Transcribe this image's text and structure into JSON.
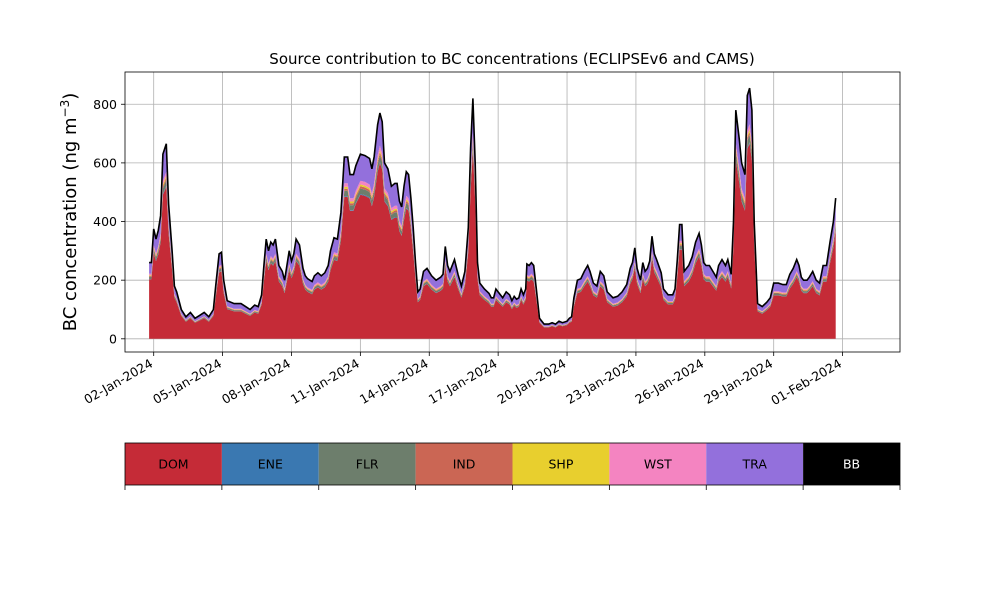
{
  "chart_data": {
    "type": "area",
    "title": "Source contribution to BC concentrations (ECLIPSEv6 and CAMS)",
    "ylabel_main": "BC concentration (ng m",
    "ylabel_sup": "−3",
    "ylabel_close": ")",
    "xlabel": "",
    "x_start": "2024-01-01",
    "xlim_days": [
      -0.25,
      33.5
    ],
    "ylim": [
      -45,
      910
    ],
    "yticks": [
      0,
      200,
      400,
      600,
      800
    ],
    "ytick_labels": [
      "0",
      "200",
      "400",
      "600",
      "800"
    ],
    "xtick_days": [
      1,
      4,
      7,
      10,
      13,
      16,
      19,
      22,
      25,
      28,
      31
    ],
    "xtick_labels": [
      "02-Jan-2024",
      "05-Jan-2024",
      "08-Jan-2024",
      "11-Jan-2024",
      "14-Jan-2024",
      "17-Jan-2024",
      "20-Jan-2024",
      "23-Jan-2024",
      "26-Jan-2024",
      "29-Jan-2024",
      "01-Feb-2024"
    ],
    "grid": true,
    "time_days": [
      -1.5,
      -1.0,
      -0.5,
      0,
      0.5,
      1.0,
      1.5,
      2.0,
      2.5,
      3.0,
      3.5,
      4.0,
      4.5,
      5.0,
      5.5,
      6.0,
      6.5,
      7.0,
      7.5,
      8.0,
      8.5,
      9.0,
      9.5,
      10.0,
      10.5,
      11.0,
      11.5,
      12.0,
      12.5,
      13.0,
      13.5,
      14.0,
      14.5,
      15.0,
      15.5,
      16.0,
      16.5,
      17.0,
      17.5,
      18.0,
      18.5,
      19.0,
      19.5,
      20.0,
      20.5,
      21.0,
      21.5,
      22.0,
      22.5,
      23.0,
      23.5,
      24.0,
      24.5,
      25.0,
      25.5,
      26.0,
      26.5,
      27.0,
      27.5,
      28.0,
      28.5,
      29.0,
      29.5,
      30.0,
      30.5,
      31.0
    ],
    "total_profile": [
      [
        0.8,
        260
      ],
      [
        0.9,
        260
      ],
      [
        1.0,
        375
      ],
      [
        1.1,
        340
      ],
      [
        1.2,
        370
      ],
      [
        1.3,
        420
      ],
      [
        1.4,
        630
      ],
      [
        1.55,
        665
      ],
      [
        1.65,
        460
      ],
      [
        1.8,
        300
      ],
      [
        1.9,
        180
      ],
      [
        2.0,
        160
      ],
      [
        2.2,
        100
      ],
      [
        2.4,
        75
      ],
      [
        2.6,
        90
      ],
      [
        2.8,
        70
      ],
      [
        3.0,
        80
      ],
      [
        3.2,
        90
      ],
      [
        3.4,
        75
      ],
      [
        3.6,
        100
      ],
      [
        3.7,
        180
      ],
      [
        3.85,
        290
      ],
      [
        3.95,
        295
      ],
      [
        4.05,
        200
      ],
      [
        4.2,
        130
      ],
      [
        4.5,
        120
      ],
      [
        4.8,
        120
      ],
      [
        5.0,
        110
      ],
      [
        5.2,
        100
      ],
      [
        5.4,
        115
      ],
      [
        5.55,
        110
      ],
      [
        5.7,
        150
      ],
      [
        5.8,
        250
      ],
      [
        5.9,
        340
      ],
      [
        6.0,
        300
      ],
      [
        6.1,
        330
      ],
      [
        6.2,
        320
      ],
      [
        6.3,
        340
      ],
      [
        6.45,
        250
      ],
      [
        6.6,
        230
      ],
      [
        6.7,
        200
      ],
      [
        6.8,
        250
      ],
      [
        6.9,
        300
      ],
      [
        7.0,
        265
      ],
      [
        7.1,
        290
      ],
      [
        7.2,
        340
      ],
      [
        7.35,
        320
      ],
      [
        7.5,
        240
      ],
      [
        7.6,
        215
      ],
      [
        7.7,
        205
      ],
      [
        7.8,
        200
      ],
      [
        7.9,
        195
      ],
      [
        8.0,
        215
      ],
      [
        8.15,
        225
      ],
      [
        8.3,
        215
      ],
      [
        8.45,
        225
      ],
      [
        8.6,
        250
      ],
      [
        8.7,
        300
      ],
      [
        8.85,
        345
      ],
      [
        9.0,
        340
      ],
      [
        9.15,
        430
      ],
      [
        9.3,
        620
      ],
      [
        9.45,
        620
      ],
      [
        9.55,
        560
      ],
      [
        9.7,
        560
      ],
      [
        9.8,
        590
      ],
      [
        10.0,
        630
      ],
      [
        10.2,
        625
      ],
      [
        10.4,
        615
      ],
      [
        10.5,
        580
      ],
      [
        10.6,
        620
      ],
      [
        10.75,
        730
      ],
      [
        10.85,
        770
      ],
      [
        10.95,
        740
      ],
      [
        11.05,
        600
      ],
      [
        11.2,
        580
      ],
      [
        11.35,
        520
      ],
      [
        11.5,
        530
      ],
      [
        11.6,
        530
      ],
      [
        11.7,
        470
      ],
      [
        11.8,
        450
      ],
      [
        11.9,
        520
      ],
      [
        12.0,
        570
      ],
      [
        12.1,
        560
      ],
      [
        12.2,
        480
      ],
      [
        12.3,
        380
      ],
      [
        12.4,
        260
      ],
      [
        12.5,
        160
      ],
      [
        12.6,
        170
      ],
      [
        12.75,
        230
      ],
      [
        12.9,
        240
      ],
      [
        13.1,
        215
      ],
      [
        13.3,
        200
      ],
      [
        13.5,
        210
      ],
      [
        13.6,
        220
      ],
      [
        13.7,
        315
      ],
      [
        13.8,
        250
      ],
      [
        13.9,
        230
      ],
      [
        14.1,
        270
      ],
      [
        14.25,
        220
      ],
      [
        14.4,
        180
      ],
      [
        14.55,
        230
      ],
      [
        14.7,
        380
      ],
      [
        14.8,
        650
      ],
      [
        14.9,
        820
      ],
      [
        15.0,
        600
      ],
      [
        15.1,
        260
      ],
      [
        15.2,
        190
      ],
      [
        15.4,
        170
      ],
      [
        15.6,
        155
      ],
      [
        15.7,
        140
      ],
      [
        15.8,
        140
      ],
      [
        15.9,
        170
      ],
      [
        16.0,
        160
      ],
      [
        16.2,
        140
      ],
      [
        16.35,
        160
      ],
      [
        16.5,
        150
      ],
      [
        16.6,
        130
      ],
      [
        16.7,
        145
      ],
      [
        16.8,
        135
      ],
      [
        16.9,
        140
      ],
      [
        17.0,
        170
      ],
      [
        17.1,
        150
      ],
      [
        17.2,
        170
      ],
      [
        17.25,
        255
      ],
      [
        17.35,
        250
      ],
      [
        17.45,
        260
      ],
      [
        17.55,
        250
      ],
      [
        17.65,
        180
      ],
      [
        17.8,
        70
      ],
      [
        18.0,
        50
      ],
      [
        18.2,
        50
      ],
      [
        18.35,
        55
      ],
      [
        18.5,
        50
      ],
      [
        18.65,
        60
      ],
      [
        18.8,
        55
      ],
      [
        19.0,
        60
      ],
      [
        19.1,
        70
      ],
      [
        19.2,
        75
      ],
      [
        19.3,
        140
      ],
      [
        19.45,
        200
      ],
      [
        19.6,
        205
      ],
      [
        19.75,
        230
      ],
      [
        19.9,
        250
      ],
      [
        20.0,
        230
      ],
      [
        20.15,
        190
      ],
      [
        20.3,
        180
      ],
      [
        20.45,
        230
      ],
      [
        20.6,
        215
      ],
      [
        20.75,
        160
      ],
      [
        21.0,
        140
      ],
      [
        21.2,
        145
      ],
      [
        21.4,
        160
      ],
      [
        21.6,
        185
      ],
      [
        21.75,
        240
      ],
      [
        21.85,
        260
      ],
      [
        21.95,
        310
      ],
      [
        22.05,
        240
      ],
      [
        22.2,
        200
      ],
      [
        22.3,
        260
      ],
      [
        22.4,
        230
      ],
      [
        22.5,
        240
      ],
      [
        22.6,
        265
      ],
      [
        22.7,
        350
      ],
      [
        22.8,
        290
      ],
      [
        22.9,
        270
      ],
      [
        23.1,
        225
      ],
      [
        23.2,
        170
      ],
      [
        23.4,
        150
      ],
      [
        23.6,
        150
      ],
      [
        23.7,
        170
      ],
      [
        23.8,
        270
      ],
      [
        23.9,
        390
      ],
      [
        24.0,
        390
      ],
      [
        24.1,
        230
      ],
      [
        24.3,
        250
      ],
      [
        24.45,
        280
      ],
      [
        24.6,
        330
      ],
      [
        24.75,
        360
      ],
      [
        24.85,
        320
      ],
      [
        24.95,
        260
      ],
      [
        25.05,
        250
      ],
      [
        25.2,
        250
      ],
      [
        25.35,
        230
      ],
      [
        25.5,
        210
      ],
      [
        25.6,
        250
      ],
      [
        25.75,
        270
      ],
      [
        25.9,
        250
      ],
      [
        26.0,
        270
      ],
      [
        26.15,
        220
      ],
      [
        26.25,
        400
      ],
      [
        26.35,
        780
      ],
      [
        26.5,
        680
      ],
      [
        26.6,
        600
      ],
      [
        26.75,
        560
      ],
      [
        26.85,
        830
      ],
      [
        26.95,
        855
      ],
      [
        27.05,
        780
      ],
      [
        27.15,
        400
      ],
      [
        27.3,
        120
      ],
      [
        27.5,
        110
      ],
      [
        27.7,
        125
      ],
      [
        27.85,
        140
      ],
      [
        28.0,
        190
      ],
      [
        28.2,
        190
      ],
      [
        28.4,
        185
      ],
      [
        28.55,
        185
      ],
      [
        28.7,
        220
      ],
      [
        28.85,
        240
      ],
      [
        29.0,
        270
      ],
      [
        29.1,
        250
      ],
      [
        29.2,
        210
      ],
      [
        29.3,
        200
      ],
      [
        29.45,
        200
      ],
      [
        29.55,
        210
      ],
      [
        29.7,
        230
      ],
      [
        29.85,
        200
      ],
      [
        30.0,
        190
      ],
      [
        30.15,
        250
      ],
      [
        30.3,
        250
      ],
      [
        30.45,
        330
      ],
      [
        30.6,
        400
      ],
      [
        30.7,
        480
      ]
    ],
    "fractions": {
      "DOM": 0.78,
      "ENE": 0.004,
      "FLR": 0.03,
      "IND": 0.012,
      "SHP": 0.01,
      "WST": 0.02,
      "TRA": 0.144,
      "BB": 0.0
    },
    "series": [
      {
        "name": "DOM",
        "color": "#c52b37"
      },
      {
        "name": "ENE",
        "color": "#3a78b1"
      },
      {
        "name": "FLR",
        "color": "#6d7e6c"
      },
      {
        "name": "IND",
        "color": "#cb6654"
      },
      {
        "name": "SHP",
        "color": "#e8cf2e"
      },
      {
        "name": "WST",
        "color": "#f484c1"
      },
      {
        "name": "TRA",
        "color": "#9370dc"
      },
      {
        "name": "BB",
        "color": "#000000"
      }
    ],
    "legend_placement": "bottom"
  }
}
